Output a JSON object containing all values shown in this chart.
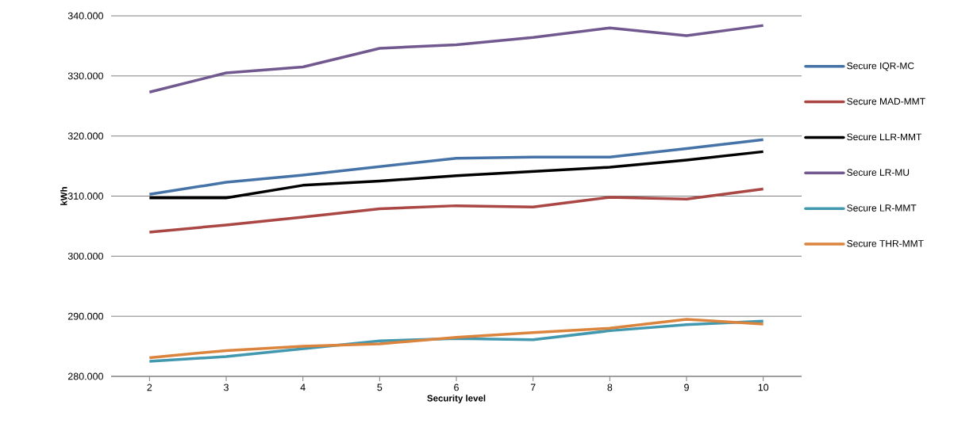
{
  "chart_data": {
    "type": "line",
    "xlabel": "Security level",
    "ylabel": "kWh",
    "x": [
      2,
      3,
      4,
      5,
      6,
      7,
      8,
      9,
      10
    ],
    "xlim": [
      1.5,
      10.5
    ],
    "xticks": [
      2,
      3,
      4,
      5,
      6,
      7,
      8,
      9,
      10
    ],
    "ylim": [
      280,
      340
    ],
    "yticks": [
      {
        "value": 280,
        "label": "280.000"
      },
      {
        "value": 290,
        "label": "290.000"
      },
      {
        "value": 300,
        "label": "300.000"
      },
      {
        "value": 310,
        "label": "310.000"
      },
      {
        "value": 320,
        "label": "320.000"
      },
      {
        "value": 330,
        "label": "330.000"
      },
      {
        "value": 340,
        "label": "340.000"
      }
    ],
    "grid": "y",
    "legend": "right",
    "series": [
      {
        "name": "Secure IQR-MC",
        "color": "#4572a7",
        "values": [
          310.3,
          312.3,
          313.5,
          314.9,
          316.3,
          316.5,
          316.5,
          317.9,
          319.4
        ]
      },
      {
        "name": "Secure MAD-MMT",
        "color": "#aa4643",
        "values": [
          304.0,
          305.2,
          306.5,
          307.9,
          308.4,
          308.2,
          309.8,
          309.5,
          311.2
        ]
      },
      {
        "name": "Secure LLR-MMT",
        "color": "#000000",
        "values": [
          309.7,
          309.7,
          311.8,
          312.5,
          313.4,
          314.1,
          314.8,
          316.0,
          317.4
        ]
      },
      {
        "name": "Secure LR-MU",
        "color": "#71588f",
        "values": [
          327.3,
          330.5,
          331.5,
          334.6,
          335.2,
          336.4,
          338.0,
          336.7,
          338.4
        ]
      },
      {
        "name": "Secure LR-MMT",
        "color": "#4198af",
        "values": [
          282.5,
          283.3,
          284.6,
          285.9,
          286.3,
          286.1,
          287.6,
          288.6,
          289.2
        ]
      },
      {
        "name": "Secure THR-MMT",
        "color": "#db843d",
        "values": [
          283.1,
          284.3,
          285.0,
          285.4,
          286.5,
          287.3,
          288.0,
          289.5,
          288.7
        ]
      }
    ]
  }
}
